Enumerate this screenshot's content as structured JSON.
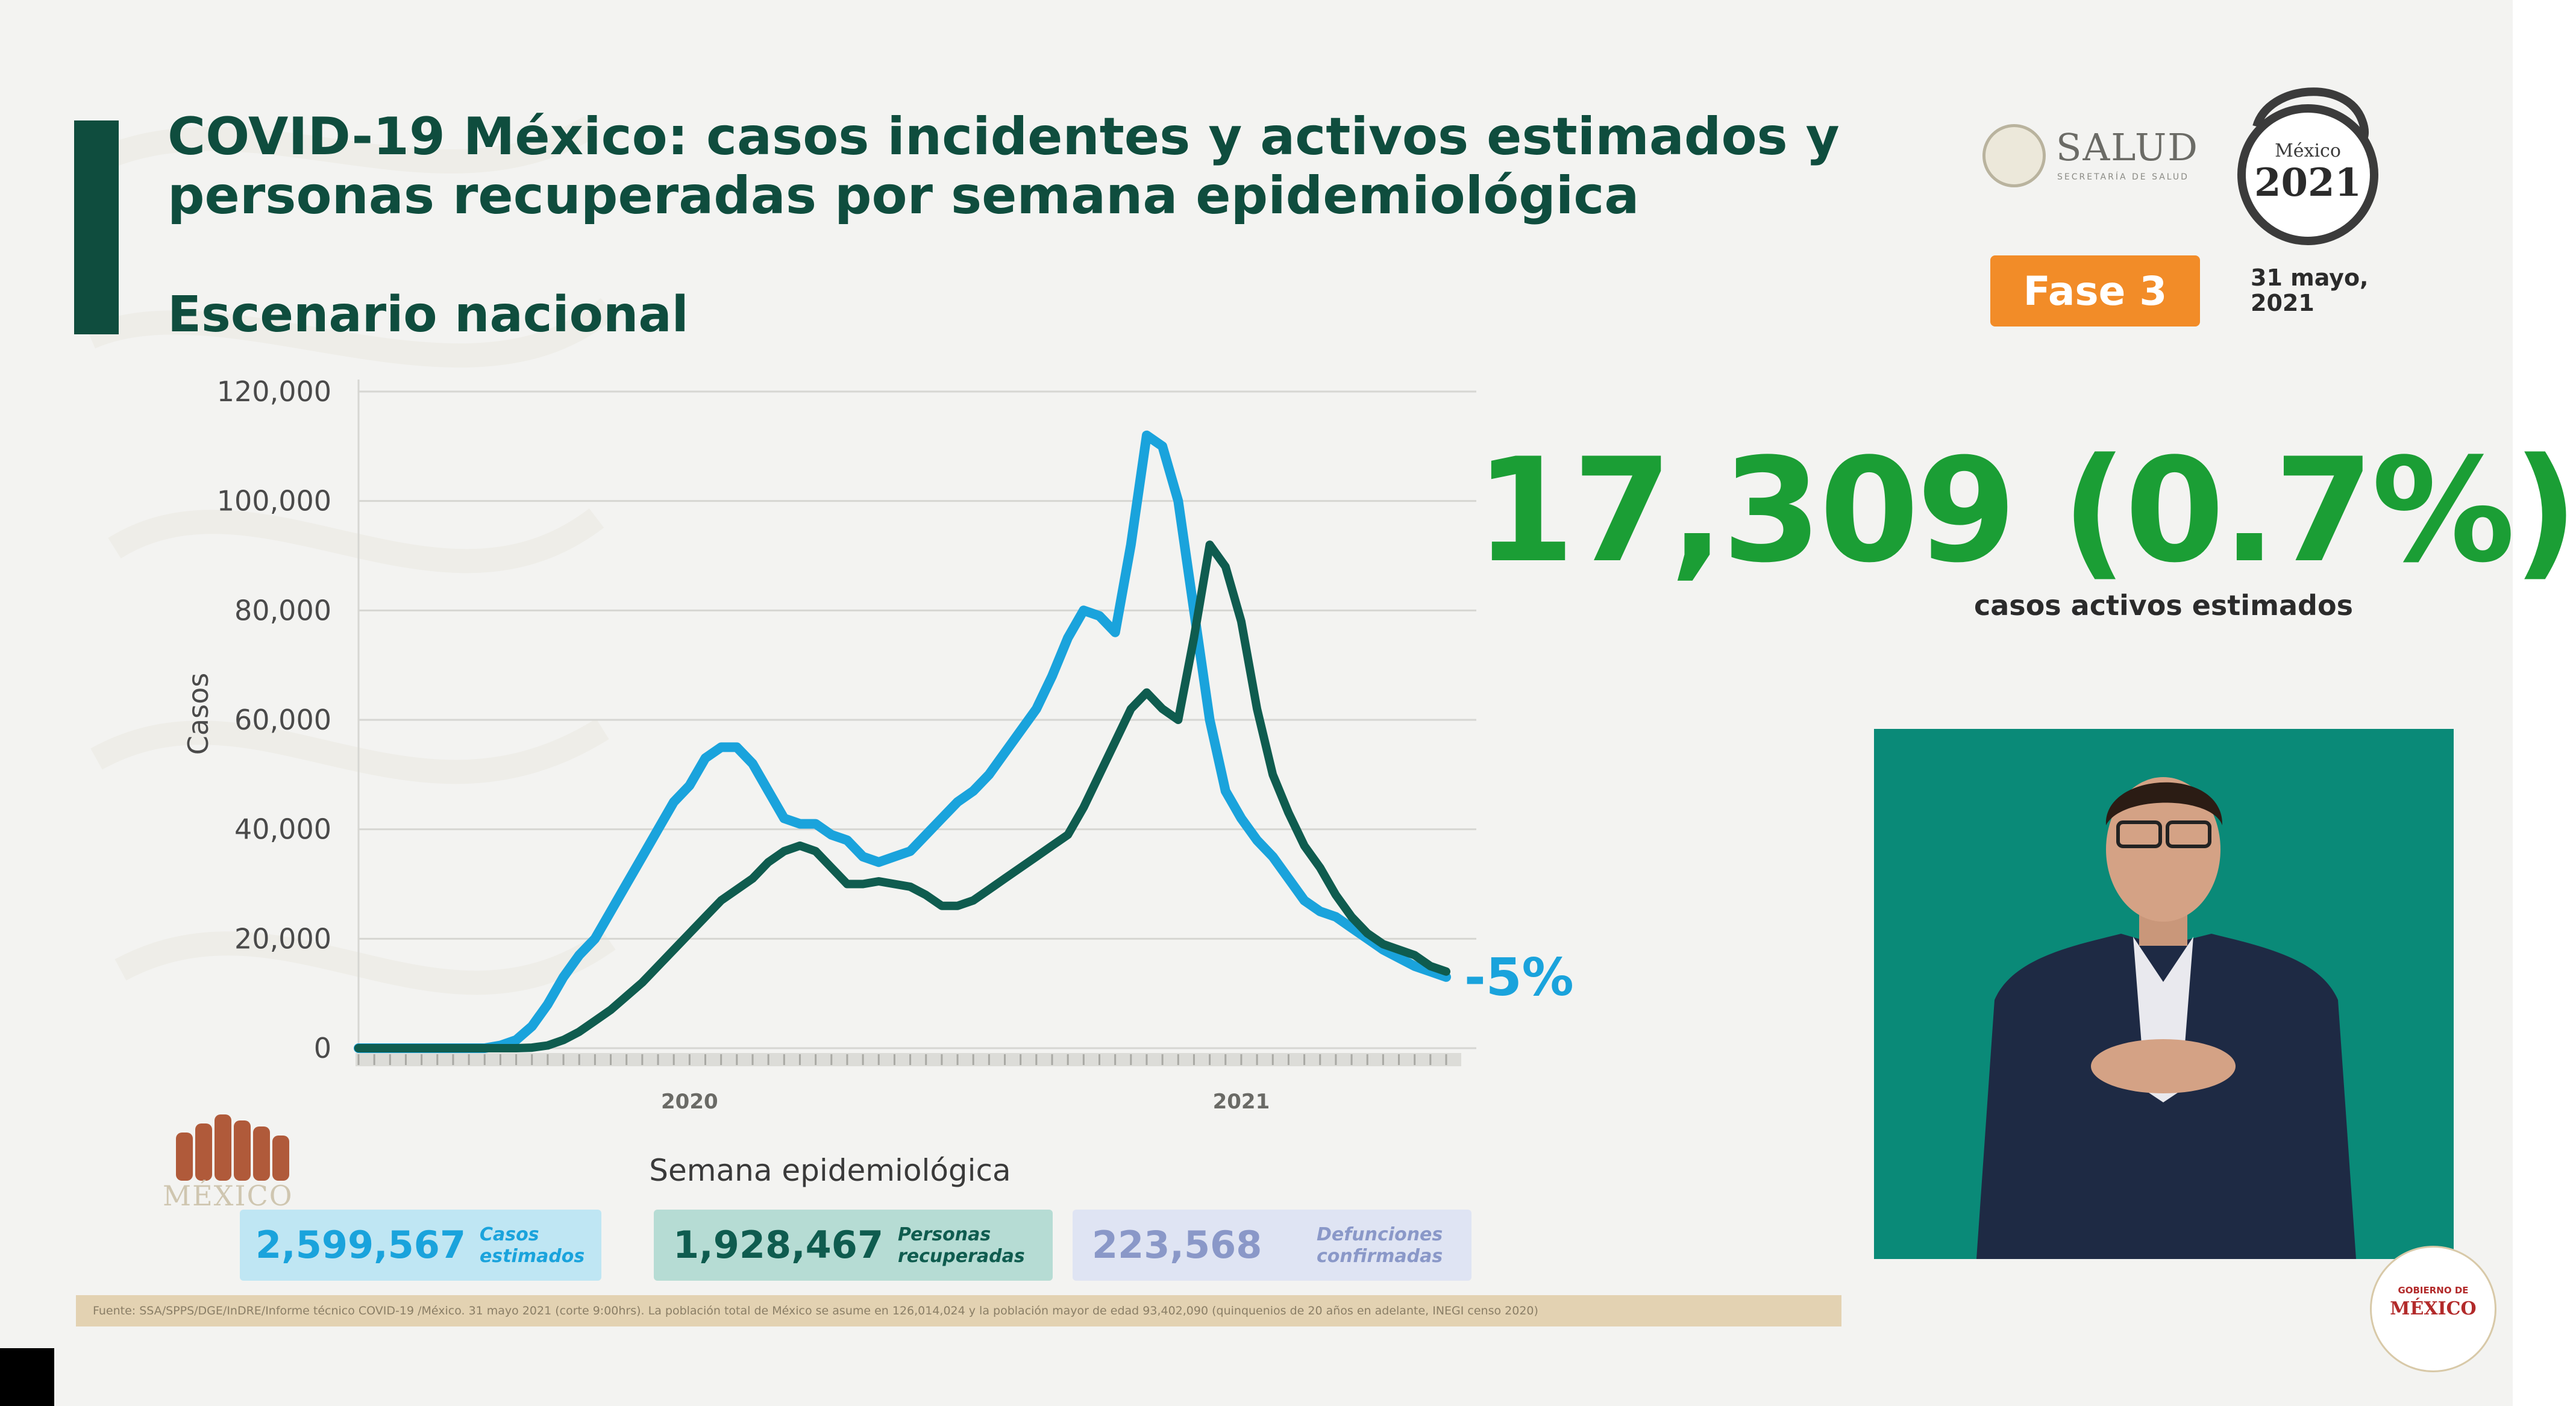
{
  "title": "COVID-19 México: casos incidentes y activos estimados y personas recuperadas por semana epidemiológica",
  "subtitle": "Escenario nacional",
  "header": {
    "salud_label": "SALUD",
    "salud_sub": "SECRETARÍA DE SALUD",
    "anniversary_top": "México",
    "anniversary_year": "2021",
    "phase": "Fase 3",
    "date_line1": "31 mayo,",
    "date_line2": "2021"
  },
  "highlight": {
    "value": "17,309 (0.7%)",
    "caption": "casos activos estimados"
  },
  "chart_data": {
    "type": "line",
    "xlabel": "Semana epidemiológica",
    "ylabel": "Casos",
    "ylim": [
      0,
      120000
    ],
    "yticks": [
      "0",
      "20,000",
      "40,000",
      "60,000",
      "80,000",
      "100,000",
      "120,000"
    ],
    "year_labels": [
      {
        "label": "2020",
        "week": 22
      },
      {
        "label": "2021",
        "week": 57
      }
    ],
    "annotation": "-5%",
    "x": [
      1,
      2,
      3,
      4,
      5,
      6,
      7,
      8,
      9,
      10,
      11,
      12,
      13,
      14,
      15,
      16,
      17,
      18,
      19,
      20,
      21,
      22,
      23,
      24,
      25,
      26,
      27,
      28,
      29,
      30,
      31,
      32,
      33,
      34,
      35,
      36,
      37,
      38,
      39,
      40,
      41,
      42,
      43,
      44,
      45,
      46,
      47,
      48,
      49,
      50,
      51,
      52,
      53,
      54,
      55,
      56,
      57,
      58,
      59,
      60,
      61,
      62,
      63,
      64,
      65,
      66,
      67,
      68,
      69,
      70
    ],
    "grid": true,
    "series": [
      {
        "color": "#1aa3dc",
        "values": [
          0,
          0,
          0,
          0,
          0,
          0,
          0,
          0,
          0,
          500,
          1500,
          4000,
          8000,
          13000,
          17000,
          20000,
          25000,
          30000,
          35000,
          40000,
          45000,
          48000,
          53000,
          55000,
          55000,
          52000,
          47000,
          42000,
          41000,
          41000,
          39000,
          38000,
          35000,
          34000,
          35000,
          36000,
          39000,
          42000,
          45000,
          47000,
          50000,
          54000,
          58000,
          62000,
          68000,
          75000,
          80000,
          79000,
          76000,
          92000,
          112000,
          110000,
          100000,
          80000,
          60000,
          47000,
          42000,
          38000,
          35000,
          31000,
          27000,
          25000,
          24000,
          22000,
          20000,
          18000,
          16500,
          15000,
          14000,
          13000
        ]
      },
      {
        "color": "#0f5c4f",
        "values": [
          0,
          0,
          0,
          0,
          0,
          0,
          0,
          0,
          0,
          0,
          0,
          100,
          500,
          1500,
          3000,
          5000,
          7000,
          9500,
          12000,
          15000,
          18000,
          21000,
          24000,
          27000,
          29000,
          31000,
          34000,
          36000,
          37000,
          36000,
          33000,
          30000,
          30000,
          30500,
          30000,
          29500,
          28000,
          26000,
          26000,
          27000,
          29000,
          31000,
          33000,
          35000,
          37000,
          39000,
          44000,
          50000,
          56000,
          62000,
          65000,
          62000,
          60000,
          75000,
          92000,
          88000,
          78000,
          62000,
          50000,
          43000,
          37000,
          33000,
          28000,
          24000,
          21000,
          19000,
          18000,
          17000,
          15000,
          14000
        ]
      }
    ]
  },
  "stats": [
    {
      "value": "2,599,567",
      "label1": "Casos",
      "label2": "estimados"
    },
    {
      "value": "1,928,467",
      "label1": "Personas",
      "label2": "recuperadas"
    },
    {
      "value": "223,568",
      "label1": "Defunciones",
      "label2": "confirmadas"
    }
  ],
  "footer": "Fuente: SSA/SPPS/DGE/InDRE/Informe técnico COVID-19 /México. 31 mayo 2021 (corte 9:00hrs). La población total de México se asume en 126,014,024 y la población mayor de edad 93,402,090 (quinquenios de 20 años en adelante, INEGI censo 2020)",
  "gob_left": "MÉXICO",
  "gob_badge_top": "GOBIERNO DE",
  "gob_badge_main": "MÉXICO",
  "colors": {
    "accent": "#0f4d3e",
    "highlight": "#1b9e35",
    "phase": "#f28c28",
    "series_incident": "#1aa3dc",
    "series_active": "#0f5c4f",
    "annotation": "#1aa3dc"
  }
}
